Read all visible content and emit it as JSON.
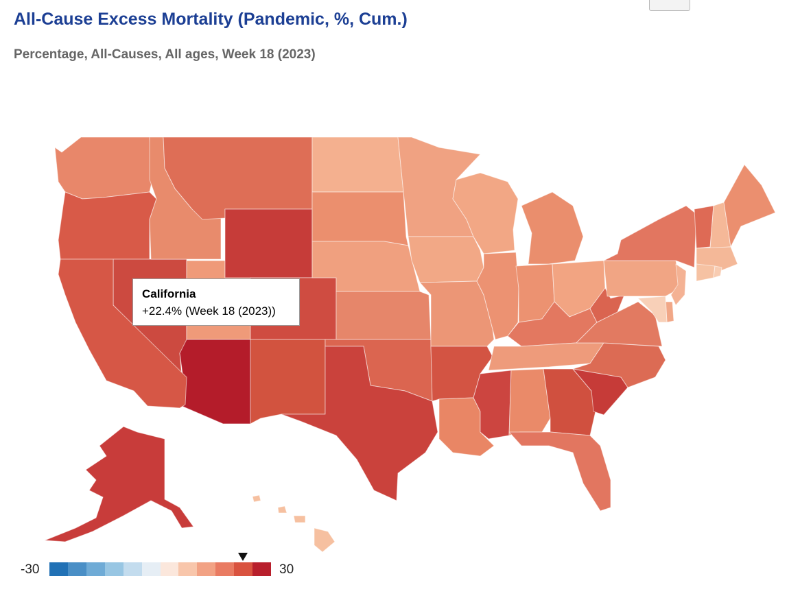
{
  "header": {
    "title": "All-Cause Excess Mortality (Pandemic, %, Cum.)",
    "subtitle": "Percentage, All-Causes, All ages, Week 18 (2023)"
  },
  "tooltip": {
    "state": "California",
    "value_text": "+22.4% (Week 18 (2023))"
  },
  "legend": {
    "min_label": "-30",
    "max_label": "30",
    "min": -30,
    "max": 30,
    "marker_value": 22.4,
    "ramp": [
      "#2171b5",
      "#4a8fc6",
      "#6fabd6",
      "#98c6e3",
      "#c3dcee",
      "#e6eef5",
      "#fbe7dc",
      "#f8c6ab",
      "#f2a284",
      "#e97b62",
      "#d9533f",
      "#b81f2c"
    ]
  },
  "colors": {
    "title": "#1c3f94",
    "highlight_border": "#7a2b2b"
  },
  "states": [
    {
      "name": "Washington",
      "color": "#e8876a"
    },
    {
      "name": "Oregon",
      "color": "#d85a48"
    },
    {
      "name": "California",
      "color": "#d65746"
    },
    {
      "name": "Idaho",
      "color": "#e88b6c"
    },
    {
      "name": "Nevada",
      "color": "#cc4a40"
    },
    {
      "name": "Utah",
      "color": "#ef9a79"
    },
    {
      "name": "Arizona",
      "color": "#b41c2a"
    },
    {
      "name": "Montana",
      "color": "#de6e56"
    },
    {
      "name": "Wyoming",
      "color": "#c63c39"
    },
    {
      "name": "Colorado",
      "color": "#cf4c41"
    },
    {
      "name": "New Mexico",
      "color": "#d2533f"
    },
    {
      "name": "North Dakota",
      "color": "#f4b08f"
    },
    {
      "name": "South Dakota",
      "color": "#eb8f6e"
    },
    {
      "name": "Nebraska",
      "color": "#f0a07f"
    },
    {
      "name": "Kansas",
      "color": "#e6866a"
    },
    {
      "name": "Oklahoma",
      "color": "#db6550"
    },
    {
      "name": "Texas",
      "color": "#ca423c"
    },
    {
      "name": "Minnesota",
      "color": "#f0a282"
    },
    {
      "name": "Iowa",
      "color": "#f2a886"
    },
    {
      "name": "Missouri",
      "color": "#ec9676"
    },
    {
      "name": "Arkansas",
      "color": "#d35443"
    },
    {
      "name": "Louisiana",
      "color": "#e98665"
    },
    {
      "name": "Wisconsin",
      "color": "#f2a785"
    },
    {
      "name": "Illinois",
      "color": "#ec9272"
    },
    {
      "name": "Michigan",
      "color": "#ea8e6d"
    },
    {
      "name": "Indiana",
      "color": "#ec9271"
    },
    {
      "name": "Ohio",
      "color": "#f2a482"
    },
    {
      "name": "Kentucky",
      "color": "#e37860"
    },
    {
      "name": "Tennessee",
      "color": "#ee9b7b"
    },
    {
      "name": "Mississippi",
      "color": "#cc4540"
    },
    {
      "name": "Alabama",
      "color": "#ea8a69"
    },
    {
      "name": "Georgia",
      "color": "#d0503f"
    },
    {
      "name": "Florida",
      "color": "#e27660"
    },
    {
      "name": "South Carolina",
      "color": "#c63b38"
    },
    {
      "name": "North Carolina",
      "color": "#dc6b54"
    },
    {
      "name": "Virginia",
      "color": "#e27a61"
    },
    {
      "name": "West Virginia",
      "color": "#da6450"
    },
    {
      "name": "Pennsylvania",
      "color": "#f1a584"
    },
    {
      "name": "New York",
      "color": "#e27660"
    },
    {
      "name": "Vermont",
      "color": "#de6a55"
    },
    {
      "name": "New Hampshire",
      "color": "#f5b898"
    },
    {
      "name": "Maine",
      "color": "#eb8f6f"
    },
    {
      "name": "Massachusetts",
      "color": "#f4b898"
    },
    {
      "name": "Connecticut",
      "color": "#f6c2a3"
    },
    {
      "name": "Rhode Island",
      "color": "#f8ccb2"
    },
    {
      "name": "New Jersey",
      "color": "#f4b294"
    },
    {
      "name": "Delaware",
      "color": "#f1a787"
    },
    {
      "name": "Maryland",
      "color": "#f8d0b8"
    },
    {
      "name": "Alaska",
      "color": "#c83c3a"
    },
    {
      "name": "Hawaii",
      "color": "#f6c0a0"
    }
  ]
}
